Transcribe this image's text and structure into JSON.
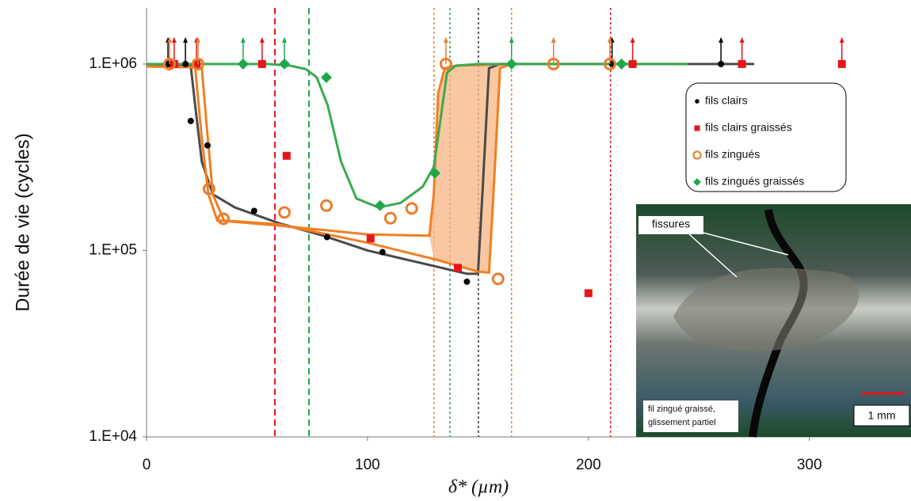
{
  "chart_data": {
    "type": "scatter",
    "x_label": "δ* (µm)",
    "y_label": "Durée de vie (cycles)",
    "xlim": [
      0,
      346
    ],
    "ylim": [
      10000,
      2000000
    ],
    "log_y": true,
    "xticks": [
      0,
      100,
      200,
      300
    ],
    "yticks": [
      {
        "value": 10000,
        "label": "1.E+04"
      },
      {
        "value": 100000,
        "label": "1.E+05"
      },
      {
        "value": 1000000,
        "label": "1.E+06"
      }
    ],
    "series": [
      {
        "name": "fils clairs",
        "color": "#000000",
        "marker": "dot",
        "x": [
          9.7,
          17.6,
          20,
          27.6,
          48.7,
          81.7,
          106.8,
          145,
          210.7,
          260
        ],
        "values": [
          1000000,
          1000000,
          495000,
          366000,
          163000,
          118000,
          98000,
          68000,
          1000000,
          1000000
        ],
        "runout": [
          true,
          true,
          false,
          false,
          false,
          false,
          false,
          false,
          true,
          true
        ]
      },
      {
        "name": "fils clairs graissés",
        "color": "#e8141c",
        "marker": "square",
        "x": [
          12.5,
          22.6,
          52.3,
          63.4,
          101.4,
          140.9,
          200,
          220,
          269.5,
          314.7
        ],
        "values": [
          1000000,
          1000000,
          1000000,
          322000,
          116000,
          80700,
          59000,
          1000000,
          1000000,
          1000000
        ],
        "runout": [
          true,
          true,
          true,
          false,
          false,
          false,
          false,
          true,
          true,
          true
        ]
      },
      {
        "name": "fils zingués",
        "color": "#e87e2e",
        "marker": "ring",
        "x": [
          10.4,
          23.3,
          28.3,
          34.8,
          62.4,
          81.4,
          110.4,
          120,
          135.5,
          159.1,
          184.2,
          209.7
        ],
        "values": [
          1000000,
          1000000,
          214000,
          148000,
          160000,
          174000,
          149000,
          168000,
          1000000,
          70400,
          1000000,
          1000000
        ],
        "runout": [
          true,
          true,
          false,
          false,
          false,
          false,
          false,
          false,
          true,
          false,
          true,
          true
        ]
      },
      {
        "name": "fils zingués graissés",
        "color": "#1fa84a",
        "marker": "diamond",
        "x": [
          43.7,
          62.4,
          81.4,
          105.7,
          130.5,
          165.2,
          215
        ],
        "values": [
          1000000,
          1000000,
          847000,
          174000,
          260000,
          1000000,
          1000000
        ],
        "runout": [
          true,
          true,
          false,
          false,
          false,
          true,
          false
        ]
      }
    ],
    "curves": [
      {
        "color": "#4a4a4a",
        "x": [
          0,
          20,
          22,
          25,
          30,
          40,
          60,
          80,
          100,
          120,
          145,
          150,
          152,
          155,
          160,
          275
        ],
        "values": [
          1000000,
          980000,
          600000,
          300000,
          200000,
          170000,
          140000,
          120000,
          100000,
          88000,
          75000,
          75000,
          200000,
          950000,
          1000000,
          1000000
        ]
      },
      {
        "color": "#f07f22",
        "x": [
          0,
          25,
          27,
          30,
          35,
          60,
          100,
          130,
          150,
          155,
          157,
          160,
          165
        ],
        "values": [
          970000,
          960000,
          500000,
          200000,
          145000,
          138000,
          110000,
          90000,
          77000,
          76000,
          200000,
          950000,
          1000000
        ]
      },
      {
        "color": "#f07f22",
        "x": [
          0,
          22,
          25,
          28,
          32,
          60,
          100,
          128,
          130,
          132,
          135,
          140,
          165
        ],
        "values": [
          970000,
          960000,
          400000,
          200000,
          145000,
          136000,
          122000,
          120000,
          200000,
          700000,
          950000,
          980000,
          1000000
        ]
      },
      {
        "color": "#3aaa4f",
        "x": [
          0,
          40,
          55,
          65,
          72,
          77,
          82,
          88,
          95,
          105,
          115,
          125,
          130,
          133,
          136,
          140,
          150,
          165,
          245
        ],
        "values": [
          1000000,
          1000000,
          1000000,
          980000,
          940000,
          850000,
          600000,
          300000,
          190000,
          170000,
          180000,
          220000,
          280000,
          500000,
          900000,
          980000,
          1000000,
          1000000,
          1000000
        ]
      }
    ],
    "vertical_lines": [
      {
        "x": 58.1,
        "color": "#e8141c",
        "style": "dashed"
      },
      {
        "x": 73.5,
        "color": "#1fa84a",
        "style": "dashed"
      },
      {
        "x": 130.1,
        "color": "#e87e2e",
        "style": "dotted"
      },
      {
        "x": 137.3,
        "color": "#1fa84a",
        "style": "dotted"
      },
      {
        "x": 150.2,
        "color": "#333333",
        "style": "dotted"
      },
      {
        "x": 165.2,
        "color": "#e87e2e",
        "style": "dotted"
      },
      {
        "x": 210,
        "color": "#e8141c",
        "style": "dotted"
      }
    ],
    "inset": {
      "label": "fissures",
      "caption": [
        "fil zingué graissé,",
        "glissement partiel"
      ],
      "scale": "1 mm"
    }
  }
}
